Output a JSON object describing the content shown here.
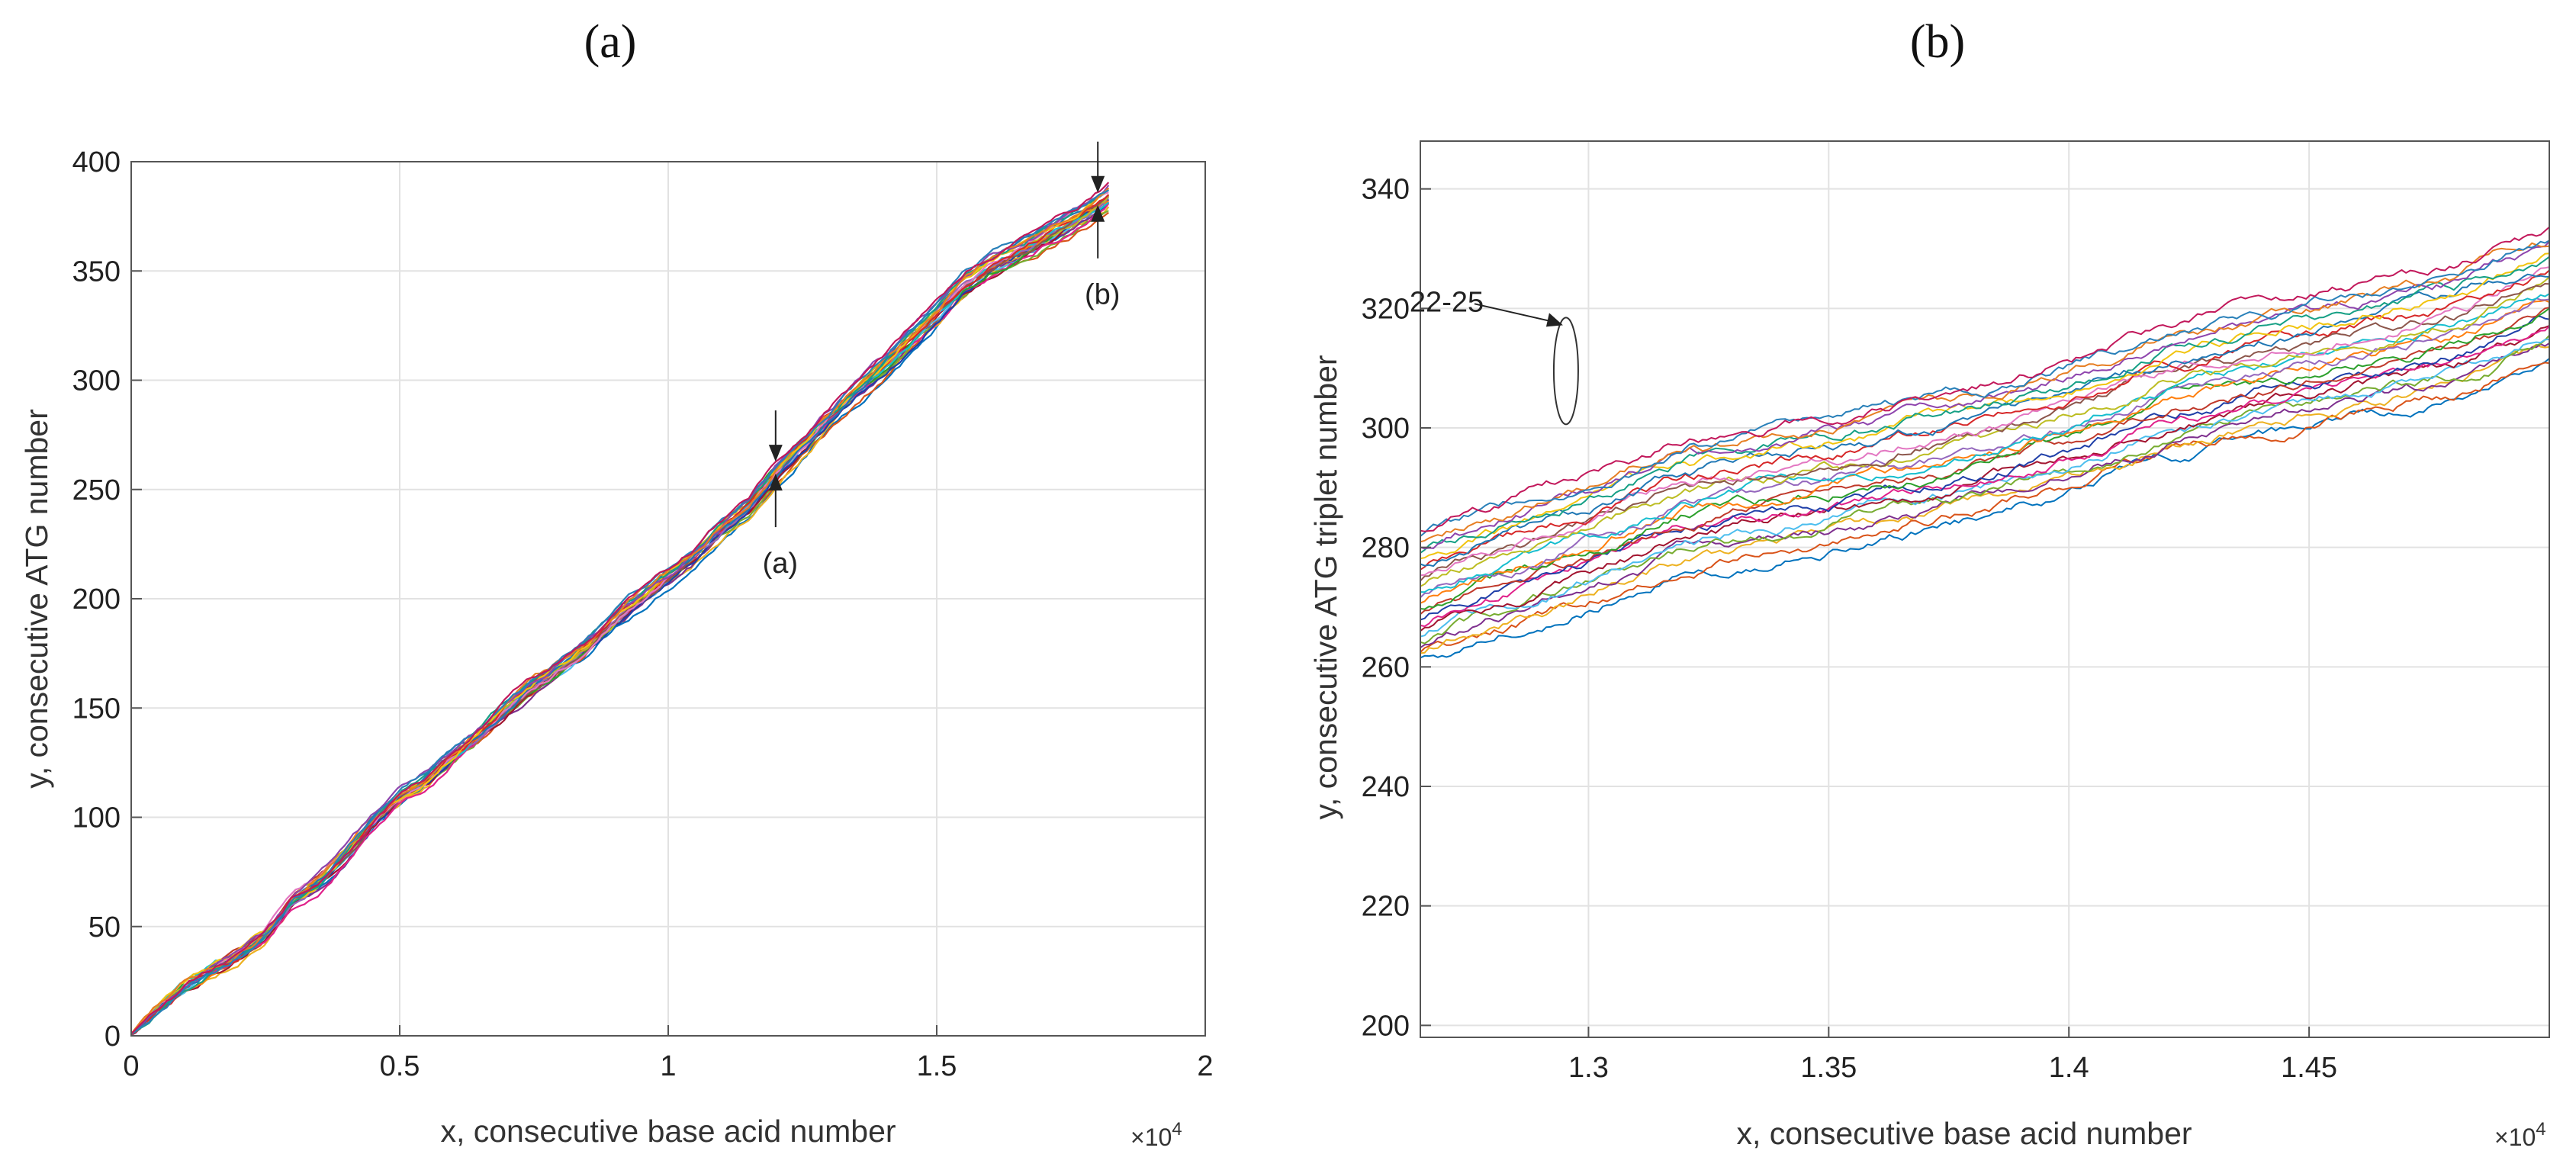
{
  "chart_data": [
    {
      "type": "line",
      "panel_label": "(a)",
      "xlabel": "x, consecutive base acid number",
      "ylabel": "y, consecutive ATG number",
      "x_exponent": "×10",
      "x_exponent_power": "4",
      "xlim": [
        0,
        2
      ],
      "ylim": [
        0,
        400
      ],
      "x_ticks": [
        0,
        0.5,
        1,
        1.5,
        2
      ],
      "x_tick_labels": [
        "0",
        "0.5",
        "1",
        "1.5",
        "2"
      ],
      "y_ticks": [
        0,
        50,
        100,
        150,
        200,
        250,
        300,
        350,
        400
      ],
      "y_tick_labels": [
        "0",
        "50",
        "100",
        "150",
        "200",
        "250",
        "300",
        "350",
        "400"
      ],
      "grid": true,
      "series_count": 25,
      "series_template": {
        "x": [
          0,
          0.05,
          0.1,
          0.15,
          0.2,
          0.25,
          0.28,
          0.3,
          0.35,
          0.4,
          0.45,
          0.5,
          0.55,
          0.6,
          0.65,
          0.7,
          0.75,
          0.8,
          0.85,
          0.9,
          0.95,
          1.0,
          1.05,
          1.1,
          1.15,
          1.2,
          1.25,
          1.3,
          1.35,
          1.4,
          1.45,
          1.5,
          1.55,
          1.6,
          1.65,
          1.7,
          1.75,
          1.8,
          1.82
        ],
        "y": [
          0,
          12,
          22,
          30,
          37,
          46,
          55,
          62,
          70,
          83,
          98,
          109,
          117,
          128,
          138,
          150,
          160,
          168,
          178,
          190,
          200,
          210,
          220,
          232,
          242,
          257,
          270,
          283,
          295,
          306,
          318,
          330,
          343,
          352,
          358,
          365,
          372,
          380,
          384
        ]
      },
      "series_spread": 6,
      "annotations": [
        {
          "text": "(a)",
          "x": 1.2,
          "y": 260
        },
        {
          "text": "(b)",
          "x": 1.8,
          "y": 383
        }
      ]
    },
    {
      "type": "line",
      "panel_label": "(b)",
      "xlabel": "x, consecutive base acid number",
      "ylabel": "y, consecutive ATG triplet number",
      "x_exponent": "×10",
      "x_exponent_power": "4",
      "xlim": [
        1.265,
        1.5
      ],
      "ylim": [
        198,
        348
      ],
      "x_ticks": [
        1.3,
        1.35,
        1.4,
        1.45
      ],
      "x_tick_labels": [
        "1.3",
        "1.35",
        "1.4",
        "1.45"
      ],
      "y_ticks": [
        200,
        220,
        240,
        260,
        280,
        300,
        320,
        340
      ],
      "y_tick_labels": [
        "200",
        "220",
        "240",
        "260",
        "280",
        "300",
        "320",
        "340"
      ],
      "grid": true,
      "series_count": 25,
      "series_template": {
        "x": [
          1.265,
          1.28,
          1.3,
          1.32,
          1.35,
          1.38,
          1.4,
          1.42,
          1.45,
          1.48,
          1.5
        ],
        "y": [
          272,
          276,
          281,
          287,
          291,
          296,
          300,
          306,
          311,
          316,
          322
        ]
      },
      "series_spread": 11,
      "annotations": [
        {
          "text": "22-25",
          "x": 1.295,
          "y": 308
        }
      ]
    }
  ],
  "colors": {
    "series": [
      "#0072BD",
      "#D95319",
      "#EDB120",
      "#7E2F8E",
      "#77AC30",
      "#4DBEEE",
      "#A2142F",
      "#E0218A",
      "#1f3fa8",
      "#c0392b",
      "#2ca02c",
      "#ff7f0e",
      "#9467bd",
      "#17becf",
      "#bcbd22",
      "#8c564b",
      "#e377c2",
      "#d62728",
      "#1f77b4",
      "#f1c40f",
      "#16a085",
      "#8e44ad",
      "#e67e22",
      "#2980b9",
      "#c2185b"
    ],
    "grid": "#e2e2e2",
    "axis": "#555555"
  }
}
